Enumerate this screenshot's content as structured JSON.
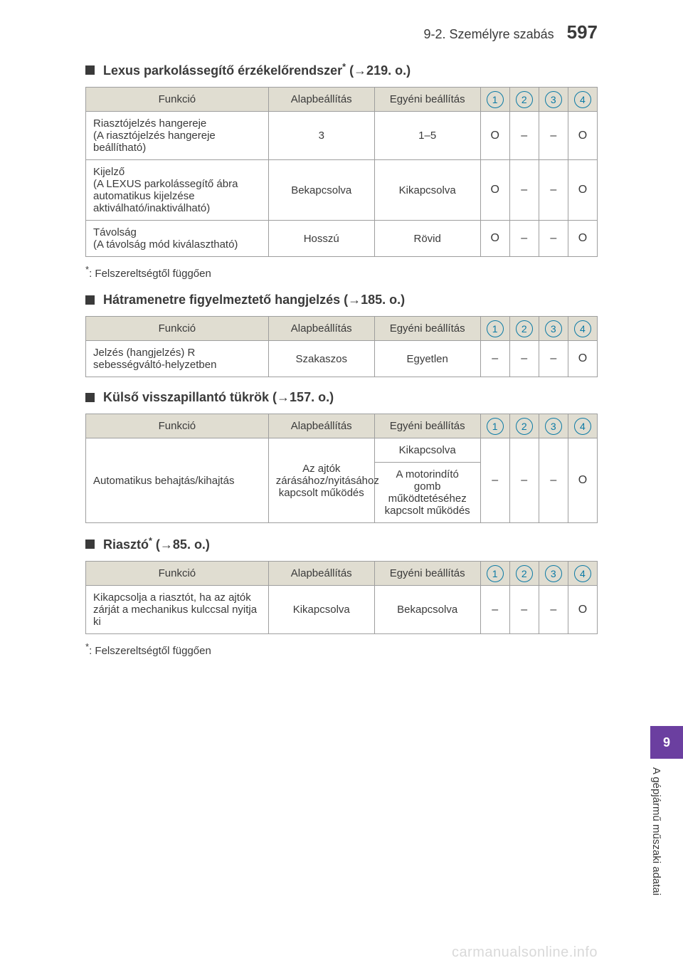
{
  "header": {
    "section": "9-2. Személyre szabás",
    "page_number": "597"
  },
  "sections": [
    {
      "title_pre": "Lexus parkolássegítő érzékelőrendszer",
      "title_star": true,
      "title_ref": " (→219. o.)",
      "table": {
        "headers": {
          "func": "Funkció",
          "def": "Alapbeállítás",
          "cust": "Egyéni beállítás"
        },
        "nums": [
          "1",
          "2",
          "3",
          "4"
        ],
        "rows": [
          {
            "func": "Riasztójelzés hangereje\n(A riasztójelzés hangereje beállítható)",
            "def": "3",
            "cust": "1–5",
            "marks": [
              "O",
              "–",
              "–",
              "O"
            ]
          },
          {
            "func": "Kijelző\n(A LEXUS parkolássegítő ábra automatikus kijelzése aktiválható/inaktiválható)",
            "def": "Bekapcsolva",
            "cust": "Kikapcsolva",
            "marks": [
              "O",
              "–",
              "–",
              "O"
            ]
          },
          {
            "func": "Távolság\n(A távolság mód kiválasztható)",
            "def": "Hosszú",
            "cust": "Rövid",
            "marks": [
              "O",
              "–",
              "–",
              "O"
            ]
          }
        ]
      },
      "footnote": "Felszereltségtől függően"
    },
    {
      "title_pre": "Hátramenetre figyelmeztető hangjelzés (",
      "title_star": false,
      "title_ref": "→185. o.)",
      "table": {
        "headers": {
          "func": "Funkció",
          "def": "Alapbeállítás",
          "cust": "Egyéni beállítás"
        },
        "nums": [
          "1",
          "2",
          "3",
          "4"
        ],
        "rows": [
          {
            "func": "Jelzés (hangjelzés) R sebességváltó-helyzetben",
            "def": "Szakaszos",
            "cust": "Egyetlen",
            "marks": [
              "–",
              "–",
              "–",
              "O"
            ]
          }
        ]
      }
    },
    {
      "title_pre": "Külső visszapillantó tükrök (",
      "title_star": false,
      "title_ref": "→157. o.)",
      "table": {
        "headers": {
          "func": "Funkció",
          "def": "Alapbeállítás",
          "cust": "Egyéni beállítás"
        },
        "nums": [
          "1",
          "2",
          "3",
          "4"
        ],
        "special": {
          "func": "Automatikus behajtás/kihajtás",
          "def": "Az ajtók zárásához/nyitásához kapcsolt működés",
          "cust1": "Kikapcsolva",
          "cust2": "A motorindító gomb működtetéséhez kapcsolt működés",
          "marks": [
            "–",
            "–",
            "–",
            "O"
          ]
        }
      }
    },
    {
      "title_pre": "Riasztó",
      "title_star": true,
      "title_ref": " (→85. o.)",
      "table": {
        "headers": {
          "func": "Funkció",
          "def": "Alapbeállítás",
          "cust": "Egyéni beállítás"
        },
        "nums": [
          "1",
          "2",
          "3",
          "4"
        ],
        "rows": [
          {
            "func": "Kikapcsolja a riasztót, ha az ajtók zárját a mechanikus kulccsal nyitja ki",
            "def": "Kikapcsolva",
            "cust": "Bekapcsolva",
            "marks": [
              "–",
              "–",
              "–",
              "O"
            ]
          }
        ]
      },
      "footnote": "Felszereltségtől függően"
    }
  ],
  "side_tab": {
    "chapter": "9",
    "label": "A gépjármű műszaki adatai"
  },
  "watermark": "carmanualsonline.info",
  "colors": {
    "accent_purple": "#6b3fa0",
    "circle_blue": "#0b7aa5",
    "header_bg": "#e0ddd1",
    "border": "#9e9e9e",
    "text": "#3a3a3a",
    "watermark": "#d9d9d9"
  }
}
